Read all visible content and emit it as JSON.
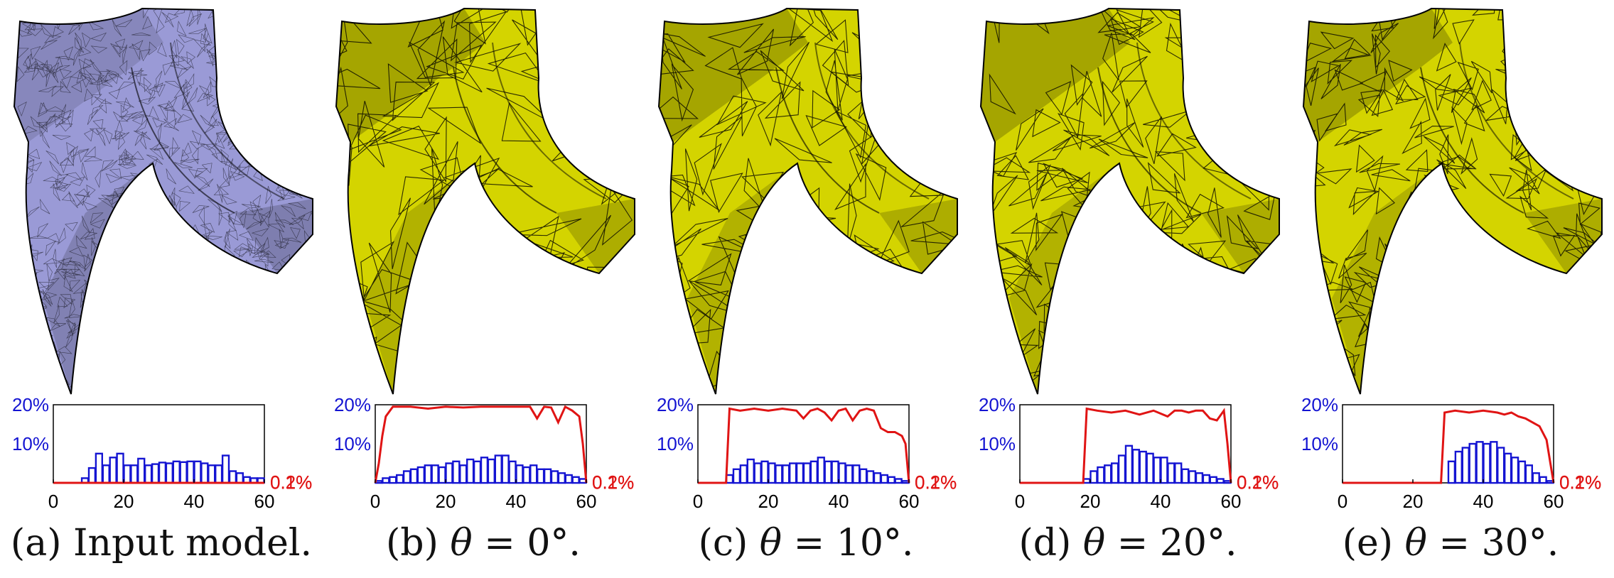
{
  "colors": {
    "input_mesh": "#9a9ad6",
    "remeshed_surface": "#d4d400",
    "edge_line": "#000000",
    "left_axis": "#1414d2",
    "right_axis": "#e01414"
  },
  "panels": [
    {
      "caption_prefix": "(a) Input model.",
      "caption_theta": "",
      "caption_suffix": "",
      "model_style": "input"
    },
    {
      "caption_prefix": "(b) ",
      "caption_theta": "θ",
      "caption_suffix": " = 0°.",
      "model_style": "remeshed"
    },
    {
      "caption_prefix": "(c) ",
      "caption_theta": "θ",
      "caption_suffix": " = 10°.",
      "model_style": "remeshed"
    },
    {
      "caption_prefix": "(d) ",
      "caption_theta": "θ",
      "caption_suffix": " = 20°.",
      "model_style": "remeshed"
    },
    {
      "caption_prefix": "(e) ",
      "caption_theta": "θ",
      "caption_suffix": " = 30°.",
      "model_style": "remeshed"
    }
  ],
  "chart_data": [
    {
      "type": "bar",
      "x_range": [
        0,
        60
      ],
      "x_ticks": [
        "0",
        "20",
        "40",
        "60"
      ],
      "y_left_ticks": [
        "10%",
        "20%"
      ],
      "y_right_ticks": [
        "0.1%",
        "0.2%"
      ],
      "ylim_left": [
        0,
        20
      ],
      "ylim_right": [
        0,
        0.2
      ],
      "bin_width": 2,
      "bars_x": [
        9,
        11,
        13,
        15,
        17,
        19,
        21,
        23,
        25,
        27,
        29,
        31,
        33,
        35,
        37,
        39,
        41,
        43,
        45,
        47,
        49,
        51,
        53,
        55,
        57,
        59
      ],
      "bars_pct": [
        1.2,
        3.8,
        7.5,
        4.5,
        6.5,
        7.5,
        4.5,
        4.5,
        6.2,
        4.5,
        4.8,
        5.2,
        5.0,
        5.5,
        5.3,
        5.5,
        5.5,
        5.0,
        4.5,
        4.5,
        7.0,
        3.0,
        2.5,
        1.5,
        1.2,
        1.2
      ],
      "line_x": [
        0,
        7,
        58,
        60
      ],
      "line_pct": [
        0,
        0,
        0,
        0
      ]
    },
    {
      "type": "bar",
      "x_range": [
        0,
        60
      ],
      "x_ticks": [
        "0",
        "20",
        "40",
        "60"
      ],
      "y_left_ticks": [
        "10%",
        "20%"
      ],
      "y_right_ticks": [
        "0.1%",
        "0.2%"
      ],
      "ylim_left": [
        0,
        20
      ],
      "ylim_right": [
        0,
        0.2
      ],
      "bin_width": 2,
      "bars_x": [
        1,
        3,
        5,
        7,
        9,
        11,
        13,
        15,
        17,
        19,
        21,
        23,
        25,
        27,
        29,
        31,
        33,
        35,
        37,
        39,
        41,
        43,
        45,
        47,
        49,
        51,
        53,
        55,
        57,
        59
      ],
      "bars_pct": [
        0.5,
        1.2,
        1.5,
        2.0,
        3.0,
        3.5,
        4.0,
        4.5,
        4.5,
        4.0,
        5.0,
        5.5,
        4.5,
        6.0,
        5.5,
        6.5,
        6.0,
        7.0,
        7.0,
        5.5,
        4.5,
        4.0,
        4.5,
        3.5,
        3.5,
        3.0,
        2.5,
        2.0,
        1.5,
        1.0
      ],
      "line_x": [
        0,
        1,
        2,
        3,
        5,
        10,
        15,
        20,
        25,
        30,
        35,
        40,
        44,
        46,
        48,
        50,
        52,
        54,
        56,
        58,
        59,
        60
      ],
      "line_pct": [
        0,
        5,
        12,
        17,
        19.5,
        19.5,
        19,
        19.5,
        19.3,
        19.5,
        19.5,
        19.5,
        19.5,
        16.5,
        19.5,
        19.3,
        15.5,
        19.5,
        18.5,
        17,
        10,
        0
      ]
    },
    {
      "type": "bar",
      "x_range": [
        0,
        60
      ],
      "x_ticks": [
        "0",
        "20",
        "40",
        "60"
      ],
      "y_left_ticks": [
        "10%",
        "20%"
      ],
      "y_right_ticks": [
        "0.1%",
        "0.2%"
      ],
      "ylim_left": [
        0,
        20
      ],
      "ylim_right": [
        0,
        0.2
      ],
      "bin_width": 2,
      "bars_x": [
        9,
        11,
        13,
        15,
        17,
        19,
        21,
        23,
        25,
        27,
        29,
        31,
        33,
        35,
        37,
        39,
        41,
        43,
        45,
        47,
        49,
        51,
        53,
        55,
        57,
        59
      ],
      "bars_pct": [
        2.0,
        3.5,
        4.5,
        6.0,
        5.0,
        5.5,
        5.0,
        4.5,
        4.5,
        5.0,
        5.0,
        5.0,
        5.5,
        6.5,
        5.5,
        5.5,
        5.0,
        4.5,
        4.5,
        3.5,
        3.0,
        2.5,
        2.0,
        1.5,
        1.0,
        0.5
      ],
      "line_x": [
        0,
        8,
        9,
        12,
        16,
        20,
        24,
        28,
        30,
        32,
        34,
        36,
        38,
        40,
        42,
        44,
        46,
        48,
        50,
        52,
        54,
        56,
        58,
        59,
        60
      ],
      "line_pct": [
        0,
        0,
        19,
        18.5,
        19,
        18.5,
        19,
        18.5,
        16.5,
        18.5,
        19,
        18,
        16,
        18.5,
        19,
        16,
        18.5,
        19,
        18.5,
        14,
        13,
        13,
        12,
        10,
        0
      ]
    },
    {
      "type": "bar",
      "x_range": [
        0,
        60
      ],
      "x_ticks": [
        "0",
        "20",
        "40",
        "60"
      ],
      "y_left_ticks": [
        "10%",
        "20%"
      ],
      "y_right_ticks": [
        "0.1%",
        "0.2%"
      ],
      "ylim_left": [
        0,
        20
      ],
      "ylim_right": [
        0,
        0.2
      ],
      "bin_width": 2,
      "bars_x": [
        19,
        21,
        23,
        25,
        27,
        29,
        31,
        33,
        35,
        37,
        39,
        41,
        43,
        45,
        47,
        49,
        51,
        53,
        55,
        57,
        59
      ],
      "bars_pct": [
        1.0,
        3.0,
        4.0,
        4.5,
        5.0,
        7.0,
        9.5,
        8.5,
        8.0,
        7.5,
        6.5,
        6.5,
        5.0,
        5.0,
        3.5,
        3.0,
        2.5,
        2.0,
        1.5,
        1.0,
        0.5
      ],
      "line_x": [
        0,
        18,
        19,
        22,
        26,
        30,
        34,
        38,
        42,
        44,
        46,
        48,
        50,
        52,
        54,
        56,
        58,
        59,
        60
      ],
      "line_pct": [
        0,
        0,
        19,
        18.5,
        18,
        18.5,
        17.5,
        18.5,
        17,
        18.5,
        18.5,
        18,
        18.5,
        18.5,
        16.5,
        16,
        18.5,
        10,
        0
      ]
    },
    {
      "type": "bar",
      "x_range": [
        0,
        60
      ],
      "x_ticks": [
        "0",
        "20",
        "40",
        "60"
      ],
      "y_left_ticks": [
        "10%",
        "20%"
      ],
      "y_right_ticks": [
        "0.1%",
        "0.2%"
      ],
      "ylim_left": [
        0,
        20
      ],
      "ylim_right": [
        0,
        0.2
      ],
      "bin_width": 2,
      "bars_x": [
        31,
        33,
        35,
        37,
        39,
        41,
        43,
        45,
        47,
        49,
        51,
        53,
        55,
        57,
        59
      ],
      "bars_pct": [
        5.5,
        8.0,
        9.0,
        10.0,
        10.5,
        10.0,
        10.5,
        9.0,
        7.5,
        6.5,
        5.5,
        4.5,
        2.5,
        1.5,
        0.5
      ],
      "line_x": [
        0,
        28,
        29,
        32,
        36,
        40,
        44,
        46,
        48,
        50,
        52,
        54,
        56,
        58,
        60
      ],
      "line_pct": [
        0,
        0,
        18,
        18.5,
        18,
        18.5,
        18,
        17.5,
        18,
        17,
        16.5,
        15.5,
        14.5,
        11,
        0
      ]
    }
  ]
}
